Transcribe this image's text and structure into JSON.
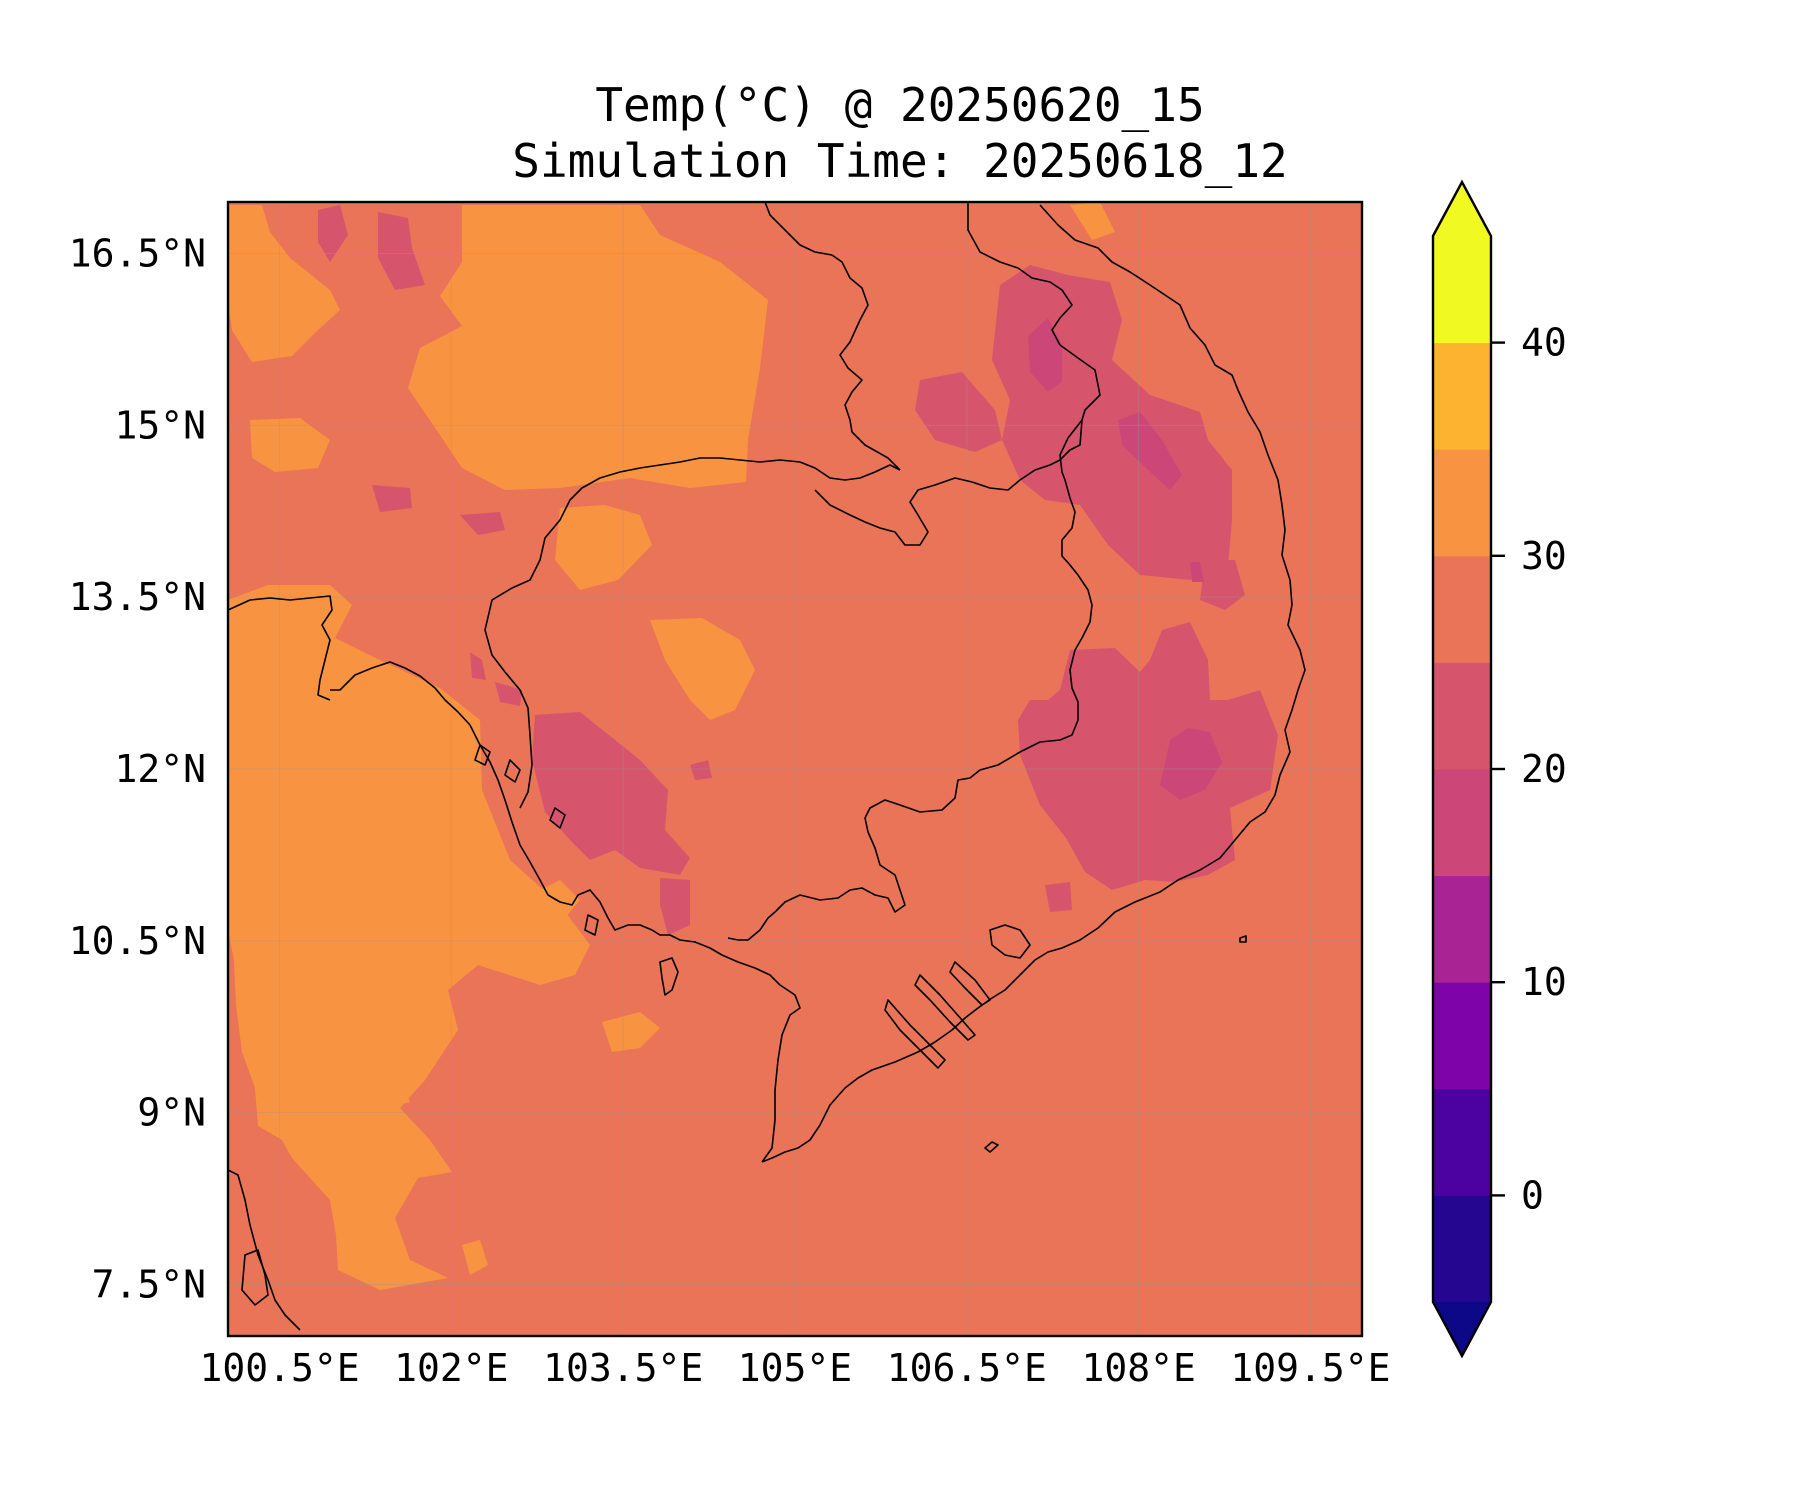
{
  "title_line1": "Temp(°C) @ 20250620_15",
  "title_line2": "Simulation Time: 20250618_12",
  "map": {
    "lon_range": [
      100.05,
      109.95
    ],
    "lat_range": [
      7.05,
      16.95
    ],
    "lon_ticks": [
      100.5,
      102,
      103.5,
      105,
      106.5,
      108,
      109.5
    ],
    "lon_tick_labels": [
      "100.5°E",
      "102°E",
      "103.5°E",
      "105°E",
      "106.5°E",
      "108°E",
      "109.5°E"
    ],
    "lat_ticks": [
      7.5,
      9,
      10.5,
      12,
      13.5,
      15,
      16.5
    ],
    "lat_tick_labels": [
      "7.5°N",
      "9°N",
      "10.5°N",
      "12°N",
      "13.5°N",
      "15°N",
      "16.5°N"
    ],
    "gridlines": true,
    "background_class_color": "#e97458"
  },
  "colorbar": {
    "levels": [
      -5,
      0,
      5,
      10,
      15,
      20,
      25,
      30,
      35,
      40,
      45
    ],
    "colors": [
      "#240691",
      "#4c02a1",
      "#7e03a8",
      "#a92395",
      "#cc4778",
      "#d6556d",
      "#e97458",
      "#f89441",
      "#fdb32f",
      "#f0f921"
    ],
    "under_color": "#0d0887",
    "over_color": "#f0f921",
    "ticks": [
      0,
      10,
      20,
      30,
      40
    ],
    "tick_labels": [
      "0",
      "10",
      "20",
      "30",
      "40"
    ],
    "extend": "both"
  }
}
